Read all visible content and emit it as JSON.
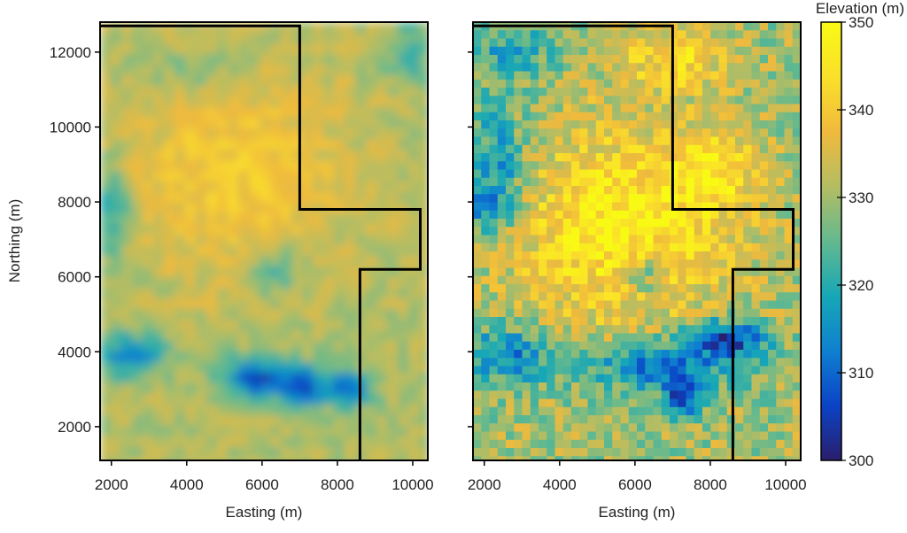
{
  "chart_data": [
    {
      "type": "heatmap",
      "style": "smooth interpolated surface",
      "xlabel": "Easting (m)",
      "ylabel": "Northing (m)",
      "xlim": [
        1700,
        10400
      ],
      "ylim": [
        1100,
        12800
      ],
      "xticks": [
        2000,
        4000,
        6000,
        8000,
        10000
      ],
      "yticks": [
        2000,
        4000,
        6000,
        8000,
        10000,
        12000
      ],
      "xtick_labels": [
        "2000",
        "4000",
        "6000",
        "8000",
        "10000"
      ],
      "ytick_labels": [
        "2000",
        "4000",
        "6000",
        "8000",
        "10000",
        "12000"
      ],
      "boundary_outline": [
        [
          1700,
          12700
        ],
        [
          7000,
          12700
        ],
        [
          7000,
          7800
        ],
        [
          10200,
          7800
        ],
        [
          10200,
          6200
        ],
        [
          8600,
          6200
        ],
        [
          8600,
          1100
        ]
      ],
      "features": [
        {
          "kind": "high",
          "x": 5200,
          "y": 8800,
          "rx": 3000,
          "ry": 2800,
          "value": 340
        },
        {
          "kind": "low",
          "x": 5800,
          "y": 3300,
          "rx": 900,
          "ry": 500,
          "value": 306
        },
        {
          "kind": "low",
          "x": 7100,
          "y": 3100,
          "rx": 700,
          "ry": 500,
          "value": 305
        },
        {
          "kind": "low",
          "x": 8300,
          "y": 3000,
          "rx": 600,
          "ry": 450,
          "value": 308
        },
        {
          "kind": "low",
          "x": 2500,
          "y": 3900,
          "rx": 900,
          "ry": 600,
          "value": 314
        },
        {
          "kind": "low",
          "x": 2000,
          "y": 7700,
          "rx": 500,
          "ry": 1200,
          "value": 320
        },
        {
          "kind": "low",
          "x": 6300,
          "y": 6100,
          "rx": 700,
          "ry": 700,
          "value": 324
        },
        {
          "kind": "low",
          "x": 10000,
          "y": 12000,
          "rx": 700,
          "ry": 800,
          "value": 322
        },
        {
          "kind": "low",
          "x": 4000,
          "y": 11500,
          "rx": 1500,
          "ry": 600,
          "value": 328
        }
      ]
    },
    {
      "type": "heatmap",
      "style": "blocky grid cells",
      "xlabel": "Easting (m)",
      "ylabel": "",
      "xlim": [
        1700,
        10400
      ],
      "ylim": [
        1100,
        12800
      ],
      "xticks": [
        2000,
        4000,
        6000,
        8000,
        10000
      ],
      "yticks": [
        2000,
        4000,
        6000,
        8000,
        10000,
        12000
      ],
      "xtick_labels": [
        "2000",
        "4000",
        "6000",
        "8000",
        "10000"
      ],
      "ytick_labels": [],
      "boundary_outline": [
        [
          1700,
          12700
        ],
        [
          7000,
          12700
        ],
        [
          7000,
          7800
        ],
        [
          10200,
          7800
        ],
        [
          10200,
          6200
        ],
        [
          8600,
          6200
        ],
        [
          8600,
          1100
        ]
      ],
      "features": [
        {
          "kind": "high",
          "x": 5600,
          "y": 7300,
          "rx": 2900,
          "ry": 2600,
          "value": 347
        },
        {
          "kind": "high",
          "x": 7800,
          "y": 8700,
          "rx": 1300,
          "ry": 1000,
          "value": 349
        },
        {
          "kind": "high",
          "x": 7000,
          "y": 11800,
          "rx": 1500,
          "ry": 900,
          "value": 343
        },
        {
          "kind": "low",
          "x": 8400,
          "y": 4300,
          "rx": 1000,
          "ry": 500,
          "value": 302
        },
        {
          "kind": "low",
          "x": 7300,
          "y": 2900,
          "rx": 500,
          "ry": 600,
          "value": 301
        },
        {
          "kind": "low",
          "x": 6800,
          "y": 3600,
          "rx": 2000,
          "ry": 700,
          "value": 312
        },
        {
          "kind": "low",
          "x": 2000,
          "y": 8000,
          "rx": 500,
          "ry": 600,
          "value": 303
        },
        {
          "kind": "low",
          "x": 2300,
          "y": 9000,
          "rx": 800,
          "ry": 1800,
          "value": 318
        },
        {
          "kind": "low",
          "x": 2600,
          "y": 3900,
          "rx": 1200,
          "ry": 800,
          "value": 314
        },
        {
          "kind": "low",
          "x": 2600,
          "y": 12000,
          "rx": 1400,
          "ry": 800,
          "value": 320
        },
        {
          "kind": "low",
          "x": 6200,
          "y": 6000,
          "rx": 600,
          "ry": 500,
          "value": 328
        }
      ]
    }
  ],
  "colorbar": {
    "title": "Elevation (m)",
    "min": 300,
    "max": 350,
    "ticks": [
      300,
      310,
      320,
      330,
      340,
      350
    ],
    "tick_labels": [
      "300",
      "310",
      "320",
      "330",
      "340",
      "350"
    ],
    "colors": [
      "#2a1e6b",
      "#0b43c6",
      "#0f80d0",
      "#17a7b6",
      "#63b98f",
      "#b4bd63",
      "#f0ba3c",
      "#fae02a",
      "#f9fa14"
    ]
  }
}
